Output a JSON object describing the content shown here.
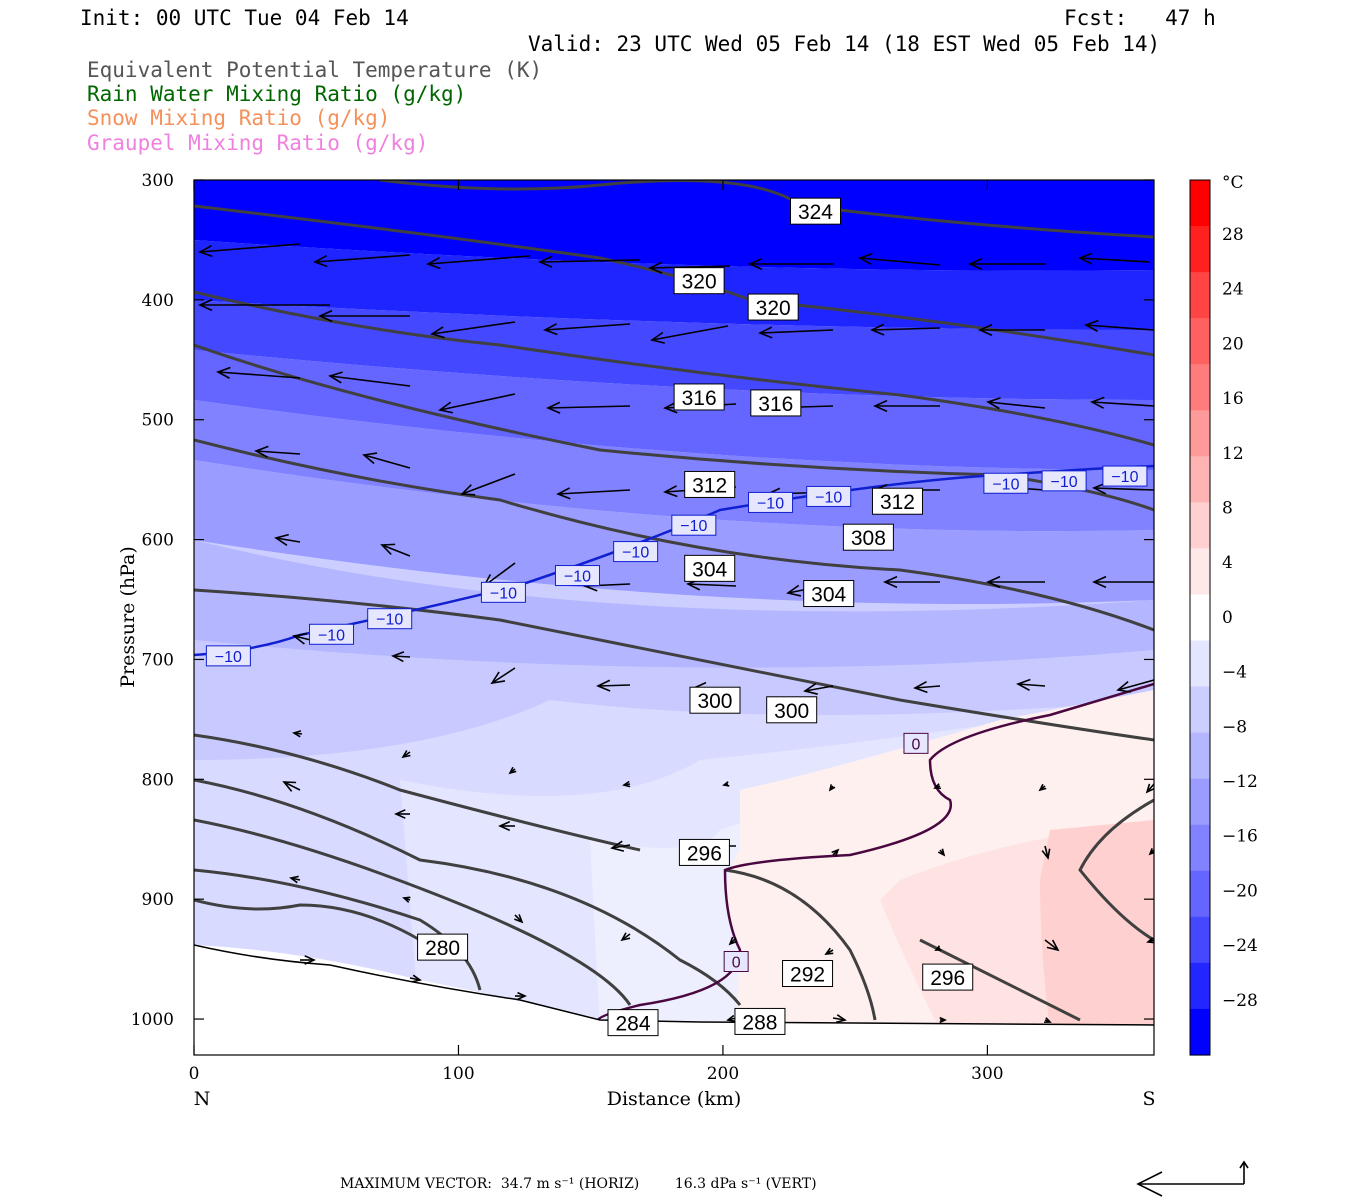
{
  "header": {
    "init": "Init: 00 UTC Tue 04 Feb 14",
    "fcst": "Fcst:   47 h",
    "valid": "Valid: 23 UTC Wed 05 Feb 14 (18 EST Wed 05 Feb 14)"
  },
  "legend": [
    {
      "label": "Equivalent Potential Temperature (K)",
      "color": "#555555"
    },
    {
      "label": "Rain Water Mixing Ratio (g/kg)",
      "color": "#006600"
    },
    {
      "label": "Snow Mixing Ratio (g/kg)",
      "color": "#f5905a"
    },
    {
      "label": "Graupel Mixing Ratio (g/kg)",
      "color": "#f080e0"
    }
  ],
  "chart_data": {
    "type": "cross-section",
    "xlabel": "Distance (km)",
    "ylabel": "Pressure (hPa)",
    "x_left_label": "N",
    "x_right_label": "S",
    "xlim": [
      0,
      363
    ],
    "ylim": [
      300,
      1030
    ],
    "x_ticks": [
      0,
      100,
      200,
      300
    ],
    "y_ticks": [
      300,
      400,
      500,
      600,
      700,
      800,
      900,
      1000
    ],
    "colorbar": {
      "unit": "°C",
      "ticks": [
        "28",
        "24",
        "20",
        "16",
        "12",
        "8",
        "4",
        "0",
        "-4",
        "-8",
        "-12",
        "-16",
        "-20",
        "-24",
        "-28"
      ],
      "colors": [
        "#ff0000",
        "#ff2020",
        "#ff4444",
        "#ff6060",
        "#ff7c7c",
        "#ff9a9a",
        "#ffb4b4",
        "#ffd0d0",
        "#ffe8e8",
        "#ffffff",
        "#e4e6ff",
        "#ccceff",
        "#b4b6ff",
        "#9a9cff",
        "#8082ff",
        "#6466ff",
        "#4448ff",
        "#2226ff",
        "#0000ff"
      ]
    },
    "theta_e_labels": [
      {
        "text": "324",
        "x": 235,
        "p": 326
      },
      {
        "text": "320",
        "x": 191,
        "p": 384
      },
      {
        "text": "320",
        "x": 219,
        "p": 406
      },
      {
        "text": "316",
        "x": 191,
        "p": 481
      },
      {
        "text": "316",
        "x": 220,
        "p": 486
      },
      {
        "text": "312",
        "x": 195,
        "p": 554
      },
      {
        "text": "312",
        "x": 266,
        "p": 568
      },
      {
        "text": "308",
        "x": 255,
        "p": 598
      },
      {
        "text": "304",
        "x": 195,
        "p": 624
      },
      {
        "text": "304",
        "x": 240,
        "p": 645
      },
      {
        "text": "300",
        "x": 197,
        "p": 734
      },
      {
        "text": "300",
        "x": 226,
        "p": 742
      },
      {
        "text": "296",
        "x": 193,
        "p": 861
      },
      {
        "text": "296",
        "x": 285,
        "p": 965
      },
      {
        "text": "292",
        "x": 232,
        "p": 962
      },
      {
        "text": "288",
        "x": 214,
        "p": 1002
      },
      {
        "text": "284",
        "x": 166,
        "p": 1003
      },
      {
        "text": "280",
        "x": 94,
        "p": 940
      }
    ],
    "isotherm_labels": [
      {
        "text": "-10",
        "x": 13,
        "p": 697
      },
      {
        "text": "-10",
        "x": 52,
        "p": 679
      },
      {
        "text": "-10",
        "x": 74,
        "p": 666
      },
      {
        "text": "-10",
        "x": 117,
        "p": 644
      },
      {
        "text": "-10",
        "x": 145,
        "p": 630
      },
      {
        "text": "-10",
        "x": 167,
        "p": 610
      },
      {
        "text": "-10",
        "x": 189,
        "p": 588
      },
      {
        "text": "-10",
        "x": 218,
        "p": 569
      },
      {
        "text": "-10",
        "x": 240,
        "p": 564
      },
      {
        "text": "-10",
        "x": 307,
        "p": 553
      },
      {
        "text": "-10",
        "x": 329,
        "p": 551
      },
      {
        "text": "-10",
        "x": 352,
        "p": 547
      },
      {
        "text": "0",
        "x": 273,
        "p": 770
      },
      {
        "text": "0",
        "x": 205,
        "p": 952
      }
    ]
  },
  "footer": {
    "text": "MAXIMUM VECTOR:  34.7 m s⁻¹ (HORIZ)        16.3 dPa s⁻¹ (VERT)"
  }
}
